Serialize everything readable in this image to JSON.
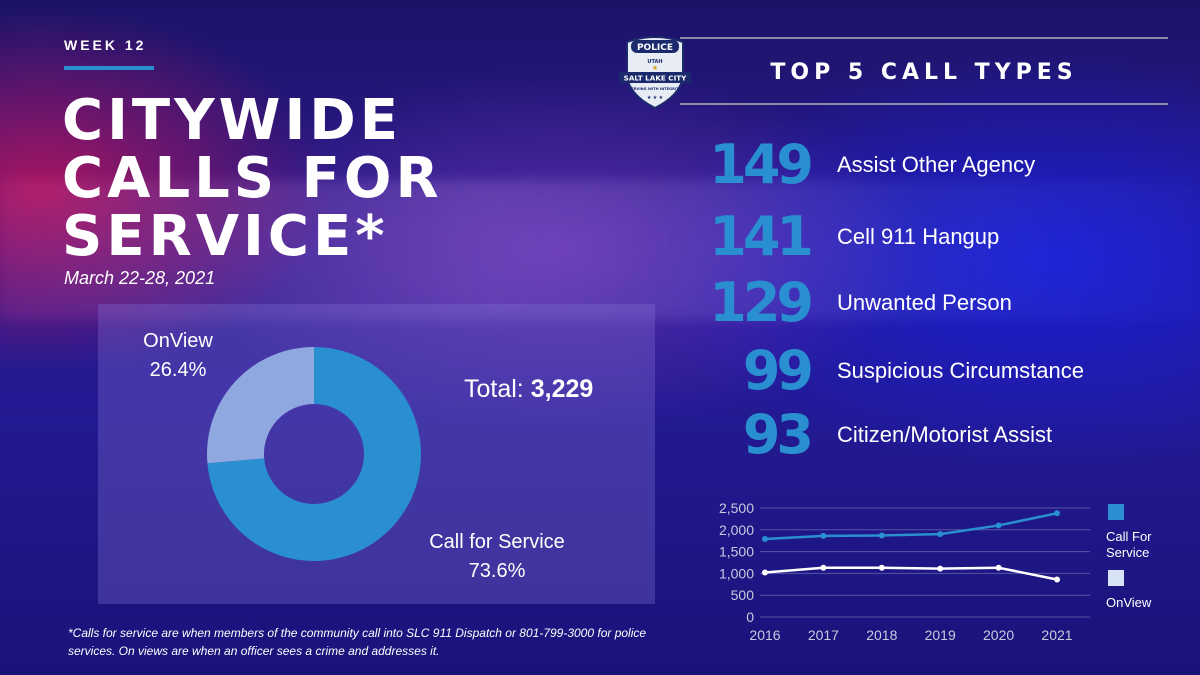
{
  "header": {
    "week": "WEEK 12",
    "title_lines": [
      "CITYWIDE",
      "CALLS FOR",
      "SERVICE*"
    ],
    "date_range": "March 22-28, 2021"
  },
  "badge": {
    "top_text": "POLICE",
    "state": "UTAH",
    "city": "SALT LAKE CITY",
    "motto": "SERVING WITH INTEGRITY"
  },
  "donut": {
    "total_label": "Total:",
    "total_value": "3,229",
    "onview_label": "OnView",
    "onview_pct": "26.4%",
    "cfs_label": "Call for Service",
    "cfs_pct": "73.6%"
  },
  "footnote": "*Calls for service are when members of the community call into SLC 911 Dispatch or 801-799-3000 for police services. On views are when an officer sees a crime and addresses it.",
  "top5": {
    "title": "TOP 5 CALL TYPES",
    "items": [
      {
        "count": "149",
        "label": "Assist Other Agency"
      },
      {
        "count": "141",
        "label": "Cell 911 Hangup"
      },
      {
        "count": "129",
        "label": "Unwanted Person"
      },
      {
        "count": "99",
        "label": "Suspicious Circumstance"
      },
      {
        "count": "93",
        "label": "Citizen/Motorist Assist"
      }
    ]
  },
  "colors": {
    "accent": "#2a8fd1",
    "onview_slice": "#8fa8e0",
    "onview_line": "#ffffff",
    "legend_onview": "#d6e4f5"
  },
  "chart_data": [
    {
      "type": "pie",
      "categories": [
        "OnView",
        "Call for Service"
      ],
      "values": [
        26.4,
        73.6
      ],
      "title": "Total: 3,229"
    },
    {
      "type": "line",
      "x": [
        "2016",
        "2017",
        "2018",
        "2019",
        "2020",
        "2021"
      ],
      "series": [
        {
          "name": "Call For Service",
          "values": [
            1790,
            1860,
            1870,
            1900,
            2100,
            2380
          ]
        },
        {
          "name": "OnView",
          "values": [
            1020,
            1130,
            1130,
            1110,
            1130,
            860
          ]
        }
      ],
      "yticks": [
        "0",
        "500",
        "1,000",
        "1,500",
        "2,000",
        "2,500"
      ],
      "ylim": [
        0,
        2500
      ],
      "legend": "right",
      "grid": true
    }
  ]
}
